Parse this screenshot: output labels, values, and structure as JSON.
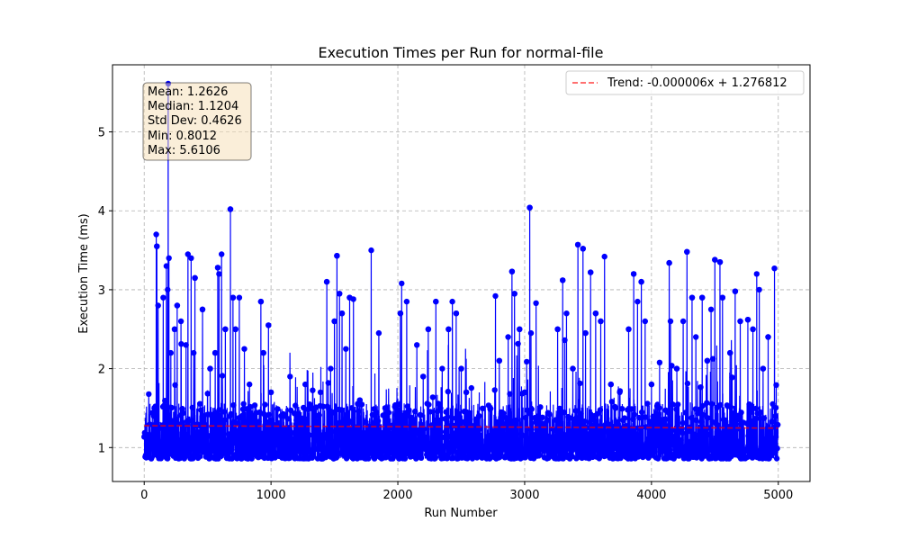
{
  "chart_data": {
    "type": "line",
    "title": "Execution Times per Run for normal-file",
    "xlabel": "Run Number",
    "ylabel": "Execution Time (ms)",
    "xlim": [
      -250,
      5250
    ],
    "ylim": [
      0.57,
      5.85
    ],
    "xticks": [
      0,
      1000,
      2000,
      3000,
      4000,
      5000
    ],
    "yticks": [
      1,
      2,
      3,
      4,
      5
    ],
    "grid": true,
    "series_color": "#0000ff",
    "trend_color": "#ff0000",
    "legend": {
      "placement": "top-right",
      "entries": [
        "Trend: -0.000006x + 1.276812"
      ]
    },
    "trend": {
      "slope": -6e-06,
      "intercept": 1.276812,
      "x_range": [
        0,
        4999
      ]
    },
    "stats": [
      "Mean: 1.2626",
      "Median: 1.1204",
      "Std Dev: 0.4626",
      "Min: 0.8012",
      "Max: 5.6106"
    ],
    "n_runs": 5000,
    "peaks": [
      {
        "x": 80,
        "y": 1.5
      },
      {
        "x": 95,
        "y": 3.7
      },
      {
        "x": 100,
        "y": 3.55
      },
      {
        "x": 110,
        "y": 2.8
      },
      {
        "x": 150,
        "y": 2.9
      },
      {
        "x": 175,
        "y": 3.3
      },
      {
        "x": 185,
        "y": 3.0
      },
      {
        "x": 189,
        "y": 5.6106
      },
      {
        "x": 195,
        "y": 3.4
      },
      {
        "x": 210,
        "y": 2.2
      },
      {
        "x": 240,
        "y": 2.5
      },
      {
        "x": 260,
        "y": 2.8
      },
      {
        "x": 290,
        "y": 2.6
      },
      {
        "x": 330,
        "y": 2.3
      },
      {
        "x": 345,
        "y": 3.45
      },
      {
        "x": 370,
        "y": 3.4
      },
      {
        "x": 390,
        "y": 2.2
      },
      {
        "x": 400,
        "y": 3.15
      },
      {
        "x": 460,
        "y": 2.75
      },
      {
        "x": 520,
        "y": 2.0
      },
      {
        "x": 560,
        "y": 2.2
      },
      {
        "x": 580,
        "y": 3.28
      },
      {
        "x": 590,
        "y": 3.2
      },
      {
        "x": 610,
        "y": 3.45
      },
      {
        "x": 640,
        "y": 2.5
      },
      {
        "x": 680,
        "y": 4.02
      },
      {
        "x": 700,
        "y": 2.9
      },
      {
        "x": 720,
        "y": 2.5
      },
      {
        "x": 750,
        "y": 2.9
      },
      {
        "x": 790,
        "y": 2.25
      },
      {
        "x": 830,
        "y": 1.8
      },
      {
        "x": 920,
        "y": 2.85
      },
      {
        "x": 940,
        "y": 2.2
      },
      {
        "x": 980,
        "y": 2.55
      },
      {
        "x": 1000,
        "y": 1.7
      },
      {
        "x": 1100,
        "y": 1.4
      },
      {
        "x": 1150,
        "y": 1.9
      },
      {
        "x": 1270,
        "y": 1.8
      },
      {
        "x": 1390,
        "y": 1.7
      },
      {
        "x": 1440,
        "y": 3.1
      },
      {
        "x": 1470,
        "y": 2.0
      },
      {
        "x": 1500,
        "y": 2.6
      },
      {
        "x": 1520,
        "y": 3.43
      },
      {
        "x": 1540,
        "y": 2.95
      },
      {
        "x": 1560,
        "y": 2.7
      },
      {
        "x": 1590,
        "y": 2.25
      },
      {
        "x": 1620,
        "y": 2.9
      },
      {
        "x": 1650,
        "y": 2.88
      },
      {
        "x": 1700,
        "y": 1.6
      },
      {
        "x": 1790,
        "y": 3.5
      },
      {
        "x": 1850,
        "y": 2.45
      },
      {
        "x": 1900,
        "y": 1.5
      },
      {
        "x": 2020,
        "y": 2.7
      },
      {
        "x": 2030,
        "y": 3.08
      },
      {
        "x": 2070,
        "y": 2.85
      },
      {
        "x": 2150,
        "y": 2.3
      },
      {
        "x": 2200,
        "y": 1.9
      },
      {
        "x": 2240,
        "y": 2.5
      },
      {
        "x": 2300,
        "y": 2.85
      },
      {
        "x": 2350,
        "y": 2.0
      },
      {
        "x": 2400,
        "y": 2.5
      },
      {
        "x": 2430,
        "y": 2.85
      },
      {
        "x": 2460,
        "y": 2.7
      },
      {
        "x": 2500,
        "y": 2.0
      },
      {
        "x": 2540,
        "y": 1.7
      },
      {
        "x": 2640,
        "y": 1.4
      },
      {
        "x": 2770,
        "y": 2.92
      },
      {
        "x": 2800,
        "y": 2.1
      },
      {
        "x": 2870,
        "y": 2.4
      },
      {
        "x": 2900,
        "y": 3.23
      },
      {
        "x": 2920,
        "y": 2.95
      },
      {
        "x": 2960,
        "y": 2.5
      },
      {
        "x": 3000,
        "y": 1.7
      },
      {
        "x": 3040,
        "y": 4.04
      },
      {
        "x": 3050,
        "y": 2.45
      },
      {
        "x": 3090,
        "y": 2.83
      },
      {
        "x": 3150,
        "y": 1.3
      },
      {
        "x": 3260,
        "y": 2.5
      },
      {
        "x": 3300,
        "y": 3.12
      },
      {
        "x": 3330,
        "y": 2.7
      },
      {
        "x": 3380,
        "y": 2.0
      },
      {
        "x": 3420,
        "y": 3.57
      },
      {
        "x": 3460,
        "y": 3.52
      },
      {
        "x": 3480,
        "y": 2.45
      },
      {
        "x": 3520,
        "y": 3.22
      },
      {
        "x": 3560,
        "y": 2.7
      },
      {
        "x": 3600,
        "y": 2.6
      },
      {
        "x": 3630,
        "y": 3.42
      },
      {
        "x": 3680,
        "y": 1.8
      },
      {
        "x": 3750,
        "y": 1.7
      },
      {
        "x": 3820,
        "y": 2.5
      },
      {
        "x": 3860,
        "y": 3.2
      },
      {
        "x": 3890,
        "y": 2.85
      },
      {
        "x": 3920,
        "y": 3.1
      },
      {
        "x": 3950,
        "y": 2.6
      },
      {
        "x": 4000,
        "y": 1.8
      },
      {
        "x": 4060,
        "y": 1.5
      },
      {
        "x": 4140,
        "y": 3.34
      },
      {
        "x": 4150,
        "y": 2.6
      },
      {
        "x": 4200,
        "y": 2.0
      },
      {
        "x": 4250,
        "y": 2.6
      },
      {
        "x": 4280,
        "y": 3.48
      },
      {
        "x": 4320,
        "y": 2.9
      },
      {
        "x": 4350,
        "y": 2.4
      },
      {
        "x": 4400,
        "y": 2.9
      },
      {
        "x": 4440,
        "y": 2.1
      },
      {
        "x": 4470,
        "y": 2.75
      },
      {
        "x": 4500,
        "y": 3.38
      },
      {
        "x": 4540,
        "y": 3.35
      },
      {
        "x": 4560,
        "y": 2.9
      },
      {
        "x": 4620,
        "y": 2.2
      },
      {
        "x": 4660,
        "y": 2.98
      },
      {
        "x": 4700,
        "y": 2.6
      },
      {
        "x": 4760,
        "y": 2.62
      },
      {
        "x": 4800,
        "y": 2.5
      },
      {
        "x": 4830,
        "y": 3.2
      },
      {
        "x": 4850,
        "y": 3.0
      },
      {
        "x": 4880,
        "y": 2.0
      },
      {
        "x": 4920,
        "y": 2.4
      },
      {
        "x": 4970,
        "y": 3.27
      }
    ]
  }
}
